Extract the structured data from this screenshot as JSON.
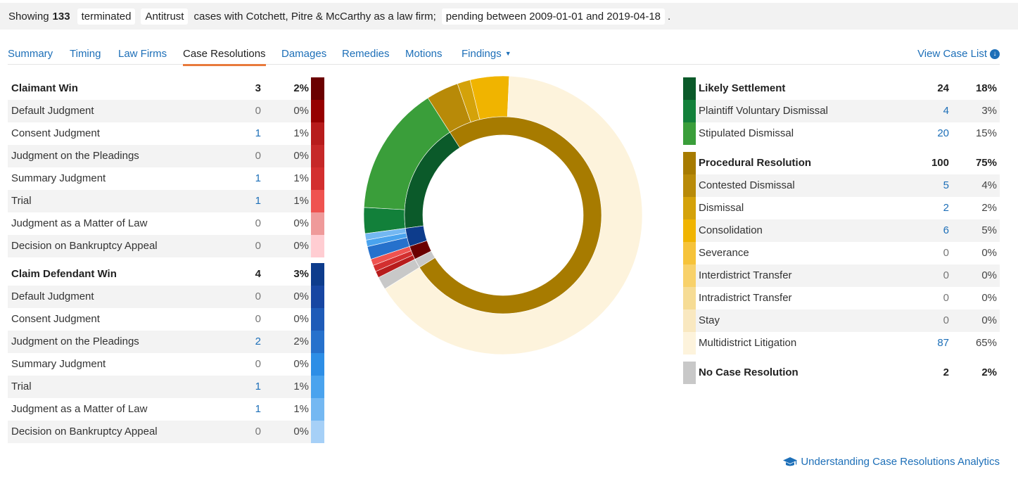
{
  "filter_bar": {
    "prefix": "Showing",
    "count": "133",
    "status": "terminated",
    "case_type": "Antitrust",
    "text": "cases with Cotchett, Pitre & McCarthy as a law firm;",
    "date_range": "pending between 2009-01-01 and 2019-04-18",
    "suffix": "."
  },
  "tabs": [
    "Summary",
    "Timing",
    "Law Firms",
    "Case Resolutions",
    "Damages",
    "Remedies",
    "Motions",
    "Findings"
  ],
  "active_tab": "Case Resolutions",
  "view_case_list": "View Case List",
  "footer_link": "Understanding Case Resolutions Analytics",
  "claimant_win": {
    "label": "Claimant Win",
    "count": "3",
    "pct": "2%",
    "color": "#6b0000",
    "rows": [
      {
        "label": "Default Judgment",
        "count": "0",
        "pct": "0%",
        "color": "#960000"
      },
      {
        "label": "Consent Judgment",
        "count": "1",
        "pct": "1%",
        "color": "#b71c1c"
      },
      {
        "label": "Judgment on the Pleadings",
        "count": "0",
        "pct": "0%",
        "color": "#c62828"
      },
      {
        "label": "Summary Judgment",
        "count": "1",
        "pct": "1%",
        "color": "#d32f2f"
      },
      {
        "label": "Trial",
        "count": "1",
        "pct": "1%",
        "color": "#ef5350"
      },
      {
        "label": "Judgment as a Matter of Law",
        "count": "0",
        "pct": "0%",
        "color": "#ef9a9a"
      },
      {
        "label": "Decision on Bankruptcy Appeal",
        "count": "0",
        "pct": "0%",
        "color": "#ffcdd2"
      }
    ]
  },
  "claim_defendant_win": {
    "label": "Claim Defendant Win",
    "count": "4",
    "pct": "3%",
    "color": "#0d3c8c",
    "rows": [
      {
        "label": "Default Judgment",
        "count": "0",
        "pct": "0%",
        "color": "#1746a2"
      },
      {
        "label": "Consent Judgment",
        "count": "0",
        "pct": "0%",
        "color": "#1e5bb8"
      },
      {
        "label": "Judgment on the Pleadings",
        "count": "2",
        "pct": "2%",
        "color": "#2671cc"
      },
      {
        "label": "Summary Judgment",
        "count": "0",
        "pct": "0%",
        "color": "#2d8ee6"
      },
      {
        "label": "Trial",
        "count": "1",
        "pct": "1%",
        "color": "#4aa3ee"
      },
      {
        "label": "Judgment as a Matter of Law",
        "count": "1",
        "pct": "1%",
        "color": "#74b8f2"
      },
      {
        "label": "Decision on Bankruptcy Appeal",
        "count": "0",
        "pct": "0%",
        "color": "#a6d0f7"
      }
    ]
  },
  "likely_settlement": {
    "label": "Likely Settlement",
    "count": "24",
    "pct": "18%",
    "color": "#0b5a2a",
    "rows": [
      {
        "label": "Plaintiff Voluntary Dismissal",
        "count": "4",
        "pct": "3%",
        "color": "#12803a"
      },
      {
        "label": "Stipulated Dismissal",
        "count": "20",
        "pct": "15%",
        "color": "#3a9e3a"
      }
    ]
  },
  "procedural_resolution": {
    "label": "Procedural Resolution",
    "count": "100",
    "pct": "75%",
    "color": "#a77b00",
    "rows": [
      {
        "label": "Contested Dismissal",
        "count": "5",
        "pct": "4%",
        "color": "#b88a08"
      },
      {
        "label": "Dismissal",
        "count": "2",
        "pct": "2%",
        "color": "#d4a20a"
      },
      {
        "label": "Consolidation",
        "count": "6",
        "pct": "5%",
        "color": "#f0b400"
      },
      {
        "label": "Severance",
        "count": "0",
        "pct": "0%",
        "color": "#f6c33a"
      },
      {
        "label": "Interdistrict Transfer",
        "count": "0",
        "pct": "0%",
        "color": "#f8d16a"
      },
      {
        "label": "Intradistrict Transfer",
        "count": "0",
        "pct": "0%",
        "color": "#f6dc95"
      },
      {
        "label": "Stay",
        "count": "0",
        "pct": "0%",
        "color": "#f9e8c0"
      },
      {
        "label": "Multidistrict Litigation",
        "count": "87",
        "pct": "65%",
        "color": "#fdf3dc"
      }
    ]
  },
  "no_case_resolution": {
    "label": "No Case Resolution",
    "count": "2",
    "pct": "2%",
    "color": "#c8c8c8"
  },
  "chart_data": {
    "type": "pie",
    "title": "",
    "inner_ring": {
      "categories": [
        "Likely Settlement",
        "Procedural Resolution",
        "No Case Resolution",
        "Claimant Win",
        "Claim Defendant Win"
      ],
      "values": [
        24,
        100,
        2,
        3,
        4
      ],
      "colors": [
        "#0b5a2a",
        "#a77b00",
        "#c8c8c8",
        "#6b0000",
        "#0d3c8c"
      ]
    },
    "outer_ring": {
      "categories": [
        "Plaintiff Voluntary Dismissal",
        "Stipulated Dismissal",
        "Contested Dismissal",
        "Dismissal",
        "Consolidation",
        "Multidistrict Litigation",
        "No Case Resolution",
        "Consent Judgment (Claimant)",
        "Summary Judgment (Claimant)",
        "Trial (Claimant)",
        "Judgment on the Pleadings (Defendant)",
        "Trial (Defendant)",
        "Judgment as a Matter of Law (Defendant)"
      ],
      "values": [
        4,
        20,
        5,
        2,
        6,
        87,
        2,
        1,
        1,
        1,
        2,
        1,
        1
      ],
      "colors": [
        "#12803a",
        "#3a9e3a",
        "#b88a08",
        "#d4a20a",
        "#f0b400",
        "#fdf3dc",
        "#c8c8c8",
        "#b71c1c",
        "#d32f2f",
        "#ef5350",
        "#2671cc",
        "#4aa3ee",
        "#74b8f2"
      ]
    }
  }
}
